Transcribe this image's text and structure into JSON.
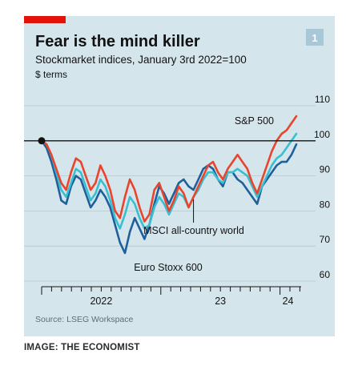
{
  "colors": {
    "panel_bg": "#d5e5ec",
    "accent_bar": "#e3120b",
    "badge_bg": "#a8c7d7",
    "sp500": "#e8452c",
    "msci": "#39bfcf",
    "stoxx": "#1f5f9c",
    "reference_line": "#121212",
    "text": "#121212",
    "source_text": "#5a6e79"
  },
  "figure": {
    "badge": "1",
    "credit": "IMAGE: THE ECONOMIST"
  },
  "chart_data": {
    "type": "line",
    "title": "Fear is the mind killer",
    "subtitle": "Stockmarket indices, January 3rd 2022=100",
    "unit": "$ terms",
    "source": "Source: LSEG Workspace",
    "ylim": [
      60,
      110
    ],
    "yticks": [
      60,
      70,
      80,
      90,
      100,
      110
    ],
    "x_ticks": [
      "2022",
      "23",
      "24"
    ],
    "reference_value": 100,
    "series": [
      {
        "name": "S&P 500",
        "color_key": "sp500",
        "label_pos": "end",
        "values": [
          100,
          99,
          96,
          92,
          88,
          86,
          91,
          95,
          94,
          90,
          86,
          88,
          93,
          90,
          86,
          80,
          78,
          84,
          89,
          86,
          81,
          77,
          79,
          86,
          88,
          84,
          80,
          83,
          87,
          85,
          81,
          84,
          87,
          90,
          93,
          94,
          91,
          89,
          92,
          94,
          96,
          94,
          92,
          88,
          85,
          89,
          93,
          97,
          100,
          102,
          103,
          105,
          107
        ]
      },
      {
        "name": "MSCI all-country world",
        "color_key": "msci",
        "label_pos": "inside",
        "values": [
          100,
          99,
          96,
          91,
          86,
          84,
          88,
          92,
          91,
          87,
          83,
          85,
          89,
          87,
          83,
          78,
          75,
          79,
          84,
          82,
          78,
          75,
          76,
          81,
          84,
          82,
          79,
          82,
          85,
          84,
          81,
          84,
          86,
          89,
          91,
          91,
          89,
          88,
          91,
          91,
          92,
          91,
          90,
          87,
          84,
          87,
          90,
          93,
          95,
          96,
          98,
          100,
          102
        ]
      },
      {
        "name": "Euro Stoxx 600",
        "color_key": "stoxx",
        "label_pos": "inside",
        "values": [
          100,
          98,
          94,
          89,
          83,
          82,
          87,
          90,
          89,
          85,
          81,
          83,
          86,
          84,
          81,
          76,
          71,
          68,
          74,
          78,
          75,
          72,
          76,
          82,
          87,
          85,
          82,
          85,
          88,
          89,
          87,
          86,
          89,
          92,
          93,
          92,
          89,
          87,
          91,
          91,
          89,
          88,
          86,
          84,
          82,
          87,
          89,
          91,
          93,
          94,
          94,
          96,
          99
        ]
      }
    ]
  }
}
